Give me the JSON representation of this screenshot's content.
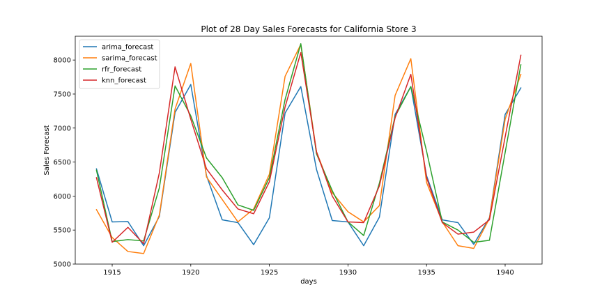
{
  "chart_data": {
    "type": "line",
    "title": "Plot of 28 Day Sales Forecasts for California Store 3",
    "xlabel": "days",
    "ylabel": "Sales Forecast",
    "xlim": [
      1912.65,
      1942.35
    ],
    "ylim": [
      5000,
      8350
    ],
    "xticks": [
      1915,
      1920,
      1925,
      1930,
      1935,
      1940
    ],
    "yticks": [
      5000,
      5500,
      6000,
      6500,
      7000,
      7500,
      8000
    ],
    "grid": false,
    "legend_position": "top-left",
    "x": [
      1914,
      1915,
      1916,
      1917,
      1918,
      1919,
      1920,
      1921,
      1922,
      1923,
      1924,
      1925,
      1926,
      1927,
      1928,
      1929,
      1930,
      1931,
      1932,
      1933,
      1934,
      1935,
      1936,
      1937,
      1938,
      1939,
      1940,
      1941
    ],
    "series": [
      {
        "name": "arima_forecast",
        "color": "#1f77b4",
        "values": [
          6400,
          5620,
          5625,
          5270,
          5700,
          7230,
          7640,
          6300,
          5650,
          5610,
          5285,
          5680,
          7220,
          7610,
          6390,
          5640,
          5620,
          5270,
          5690,
          7200,
          7610,
          6300,
          5650,
          5610,
          5290,
          5680,
          7200,
          7590
        ]
      },
      {
        "name": "sarima_forecast",
        "color": "#ff7f0e",
        "values": [
          5800,
          5390,
          5185,
          5155,
          5720,
          7280,
          7950,
          6280,
          5950,
          5620,
          5810,
          6320,
          7760,
          8230,
          6650,
          6050,
          5770,
          5620,
          5860,
          7480,
          8020,
          6200,
          5620,
          5270,
          5230,
          5670,
          7130,
          7790
        ]
      },
      {
        "name": "rfr_forecast",
        "color": "#2ca02c",
        "values": [
          6380,
          5330,
          5360,
          5340,
          6120,
          7620,
          7180,
          6560,
          6270,
          5870,
          5790,
          6270,
          7420,
          8240,
          6620,
          6080,
          5620,
          5420,
          6190,
          7170,
          7610,
          6660,
          5620,
          5500,
          5320,
          5350,
          6640,
          7930
        ]
      },
      {
        "name": "knn_forecast",
        "color": "#d62728",
        "values": [
          6270,
          5320,
          5540,
          5300,
          6340,
          7900,
          7130,
          6400,
          6090,
          5810,
          5740,
          6210,
          7310,
          8110,
          6650,
          6000,
          5620,
          5610,
          6150,
          7150,
          7790,
          6270,
          5610,
          5440,
          5470,
          5650,
          6870,
          8070
        ]
      }
    ]
  }
}
